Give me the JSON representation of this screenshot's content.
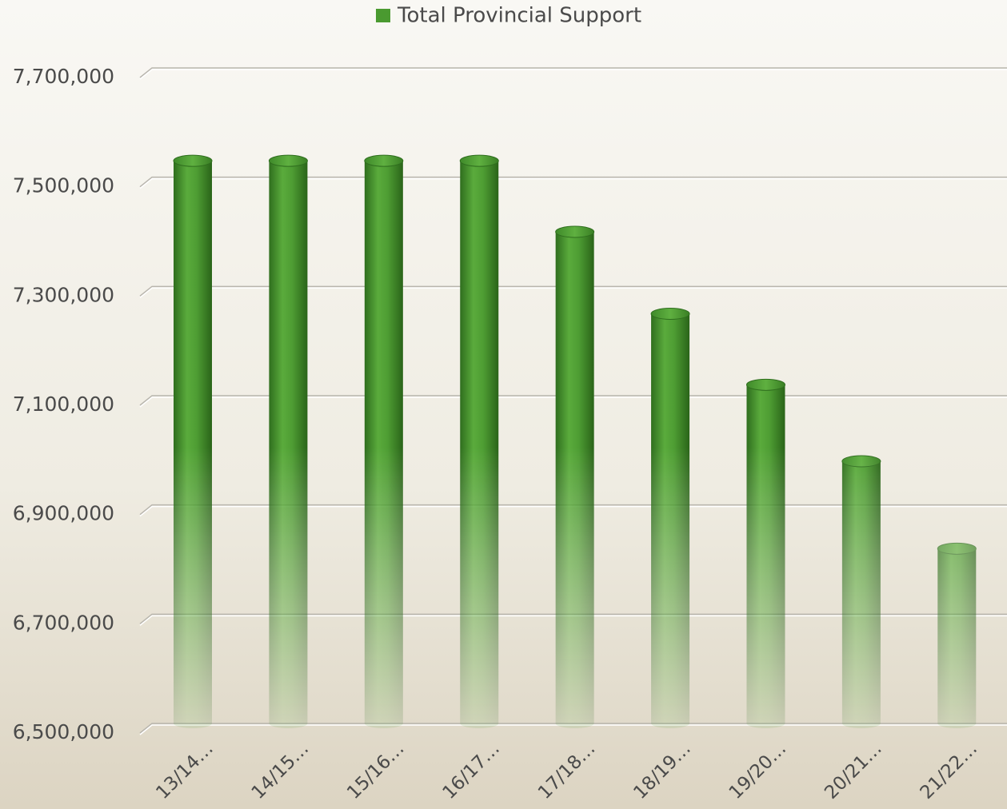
{
  "chart_data": {
    "type": "bar",
    "categories": [
      "13/14…",
      "14/15…",
      "15/16…",
      "16/17…",
      "17/18…",
      "18/19…",
      "19/20…",
      "20/21…",
      "21/22…"
    ],
    "series": [
      {
        "name": "Total Provincial Support",
        "color": "#4a9a30",
        "values": [
          7530000,
          7530000,
          7530000,
          7530000,
          7400000,
          7250000,
          7120000,
          6980000,
          6820000
        ]
      }
    ],
    "ylim": [
      6500000,
      7700000
    ],
    "yticks": [
      {
        "value": 6500000,
        "label": "6,500,000"
      },
      {
        "value": 6700000,
        "label": "6,700,000"
      },
      {
        "value": 6900000,
        "label": "6,900,000"
      },
      {
        "value": 7100000,
        "label": "7,100,000"
      },
      {
        "value": 7300000,
        "label": "7,300,000"
      },
      {
        "value": 7500000,
        "label": "7,500,000"
      },
      {
        "value": 7700000,
        "label": "7,700,000"
      }
    ],
    "grid": true,
    "legend": "top"
  }
}
